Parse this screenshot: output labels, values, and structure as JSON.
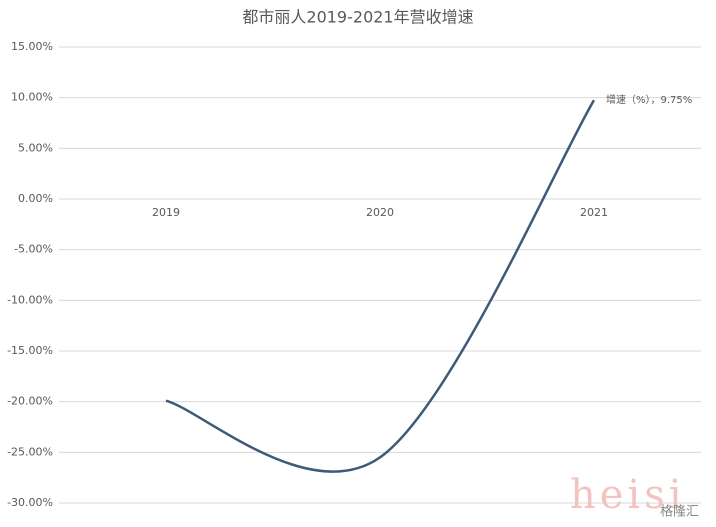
{
  "chart_data": {
    "type": "line",
    "title": "都市丽人2019-2021年营收增速",
    "categories": [
      "2019",
      "2020",
      "2021"
    ],
    "series": [
      {
        "name": "增速（%）",
        "color": "#3d5a78",
        "values": [
          -19.9,
          -25.5,
          9.75
        ],
        "value_labels": [
          null,
          null,
          "增速（%），9.75%"
        ]
      }
    ],
    "ylim": [
      -30,
      15
    ],
    "yticks": [
      {
        "value": -30,
        "label": "-30.00%"
      },
      {
        "value": -25,
        "label": "-25.00%"
      },
      {
        "value": -20,
        "label": "-20.00%"
      },
      {
        "value": -15,
        "label": "-15.00%"
      },
      {
        "value": -10,
        "label": "-10.00%"
      },
      {
        "value": -5,
        "label": "-5.00%"
      },
      {
        "value": 0,
        "label": "0.00%"
      },
      {
        "value": 5,
        "label": "5.00%"
      },
      {
        "value": 10,
        "label": "10.00%"
      },
      {
        "value": 15,
        "label": "15.00%"
      }
    ],
    "grid": true,
    "smooth": true,
    "watermark": "heisi",
    "logo_text": "格隆汇"
  }
}
